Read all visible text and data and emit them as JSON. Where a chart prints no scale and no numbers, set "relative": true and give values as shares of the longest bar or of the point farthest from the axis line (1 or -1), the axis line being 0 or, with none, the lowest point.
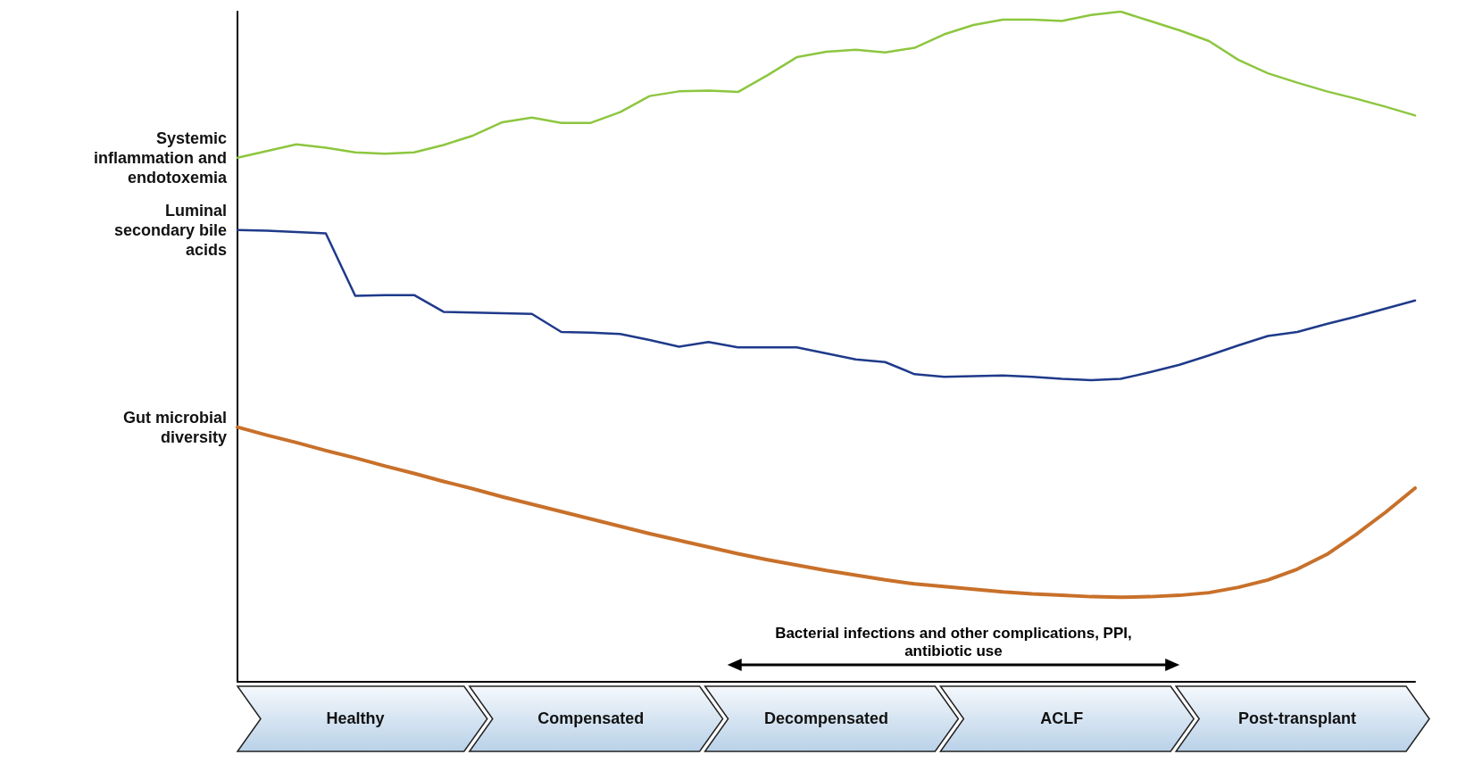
{
  "chart_data": {
    "type": "line",
    "relative": true,
    "categories": [
      null,
      null,
      null,
      null,
      "Healthy",
      null,
      null,
      null,
      null,
      null,
      null,
      null,
      "Compensated",
      null,
      null,
      null,
      null,
      null,
      null,
      null,
      "Decompensated",
      null,
      null,
      null,
      null,
      null,
      null,
      null,
      "ACLF",
      null,
      null,
      null,
      null,
      null,
      null,
      null,
      "Post-transplant",
      null,
      null,
      null,
      null
    ],
    "grid": false,
    "legend": false,
    "marker": "none",
    "line_style": "solid",
    "annotations": [
      "Bacterial infections and other complications, PPI, antibiotic use"
    ],
    "series": [
      {
        "name": "Systemic inflammation and endotoxemia",
        "color": "#8dc63f",
        "values": [
          0.782,
          0.792,
          0.802,
          0.797,
          0.79,
          0.788,
          0.79,
          0.801,
          0.815,
          0.835,
          0.842,
          0.834,
          0.834,
          0.85,
          0.874,
          0.881,
          0.882,
          0.88,
          0.905,
          0.932,
          0.94,
          0.943,
          0.939,
          0.946,
          0.966,
          0.98,
          0.988,
          0.988,
          0.986,
          0.995,
          1,
          0.986,
          0.972,
          0.956,
          0.928,
          0.908,
          0.894,
          0.881,
          0.87,
          0.858,
          0.845
        ]
      },
      {
        "name": "Luminal secondary bile acids",
        "color": "#1f3a8a",
        "values": [
          0.674,
          0.673,
          0.671,
          0.669,
          0.576,
          0.577,
          0.577,
          0.552,
          0.551,
          0.55,
          0.549,
          0.522,
          0.521,
          0.519,
          0.51,
          0.5,
          0.507,
          0.499,
          0.499,
          0.499,
          0.49,
          0.481,
          0.477,
          0.459,
          0.455,
          0.456,
          0.457,
          0.455,
          0.452,
          0.45,
          0.452,
          0.462,
          0.473,
          0.487,
          0.502,
          0.516,
          0.522,
          0.534,
          0.545,
          0.557,
          0.569
        ]
      },
      {
        "name": "Gut microbial diversity",
        "color": "#c8702a",
        "values": [
          0.38,
          0.368,
          0.357,
          0.345,
          0.334,
          0.322,
          0.311,
          0.299,
          0.288,
          0.276,
          0.265,
          0.254,
          0.243,
          0.232,
          0.221,
          0.211,
          0.201,
          0.191,
          0.182,
          0.174,
          0.166,
          0.159,
          0.152,
          0.146,
          0.142,
          0.138,
          0.134,
          0.131,
          0.129,
          0.127,
          0.126,
          0.127,
          0.129,
          0.133,
          0.141,
          0.152,
          0.168,
          0.19,
          0.22,
          0.253,
          0.289
        ]
      }
    ]
  }
}
